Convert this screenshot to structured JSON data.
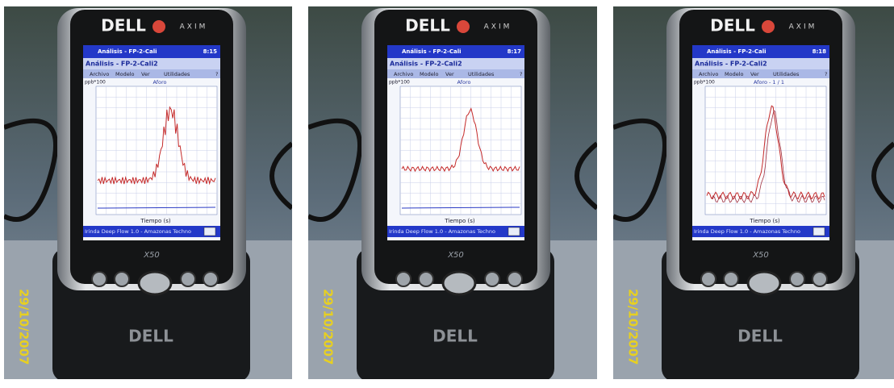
{
  "panels": [
    {
      "logo": "DELL",
      "brand": "AXIM",
      "model": "X50",
      "dock_logo": "DELL",
      "date": "29/10/2007",
      "screen": {
        "taskbar_title": "Análisis - FP-2-Cali",
        "time": "8:15",
        "window_title": "Análisis - FP-2-Cali2",
        "menu": [
          "Archivo",
          "Modelo",
          "Ver",
          "Utilidades",
          "?"
        ],
        "y_unit": "ppb*100",
        "plot_title": "Aforo",
        "x_label": "Tiempo (s)",
        "status": "Irinda Deep Flow 1.0 - Amazonas Techno"
      }
    },
    {
      "logo": "DELL",
      "brand": "AXIM",
      "model": "X50",
      "dock_logo": "DELL",
      "date": "29/10/2007",
      "screen": {
        "taskbar_title": "Análisis - FP-2-Cali",
        "time": "8:17",
        "window_title": "Análisis - FP-2-Cali2",
        "menu": [
          "Archivo",
          "Modelo",
          "Ver",
          "Utilidades",
          "?"
        ],
        "y_unit": "ppb*100",
        "plot_title": "Aforo",
        "x_label": "Tiempo (s)",
        "status": "Irinda Deep Flow 1.0 - Amazonas Techno"
      }
    },
    {
      "logo": "DELL",
      "brand": "AXIM",
      "model": "X50",
      "dock_logo": "DELL",
      "date": "29/10/2007",
      "screen": {
        "taskbar_title": "Análisis - FP-2-Cali",
        "time": "8:18",
        "window_title": "Análisis - FP-2-Cali2",
        "menu": [
          "Archivo",
          "Modelo",
          "Ver",
          "Utilidades",
          "?"
        ],
        "y_unit": "ppb*100",
        "plot_title": "Aforo - 1 / 1",
        "x_label": "Tiempo (s)",
        "status": "Irinda Deep Flow 1.0 - Amazonas Techno"
      }
    }
  ]
}
